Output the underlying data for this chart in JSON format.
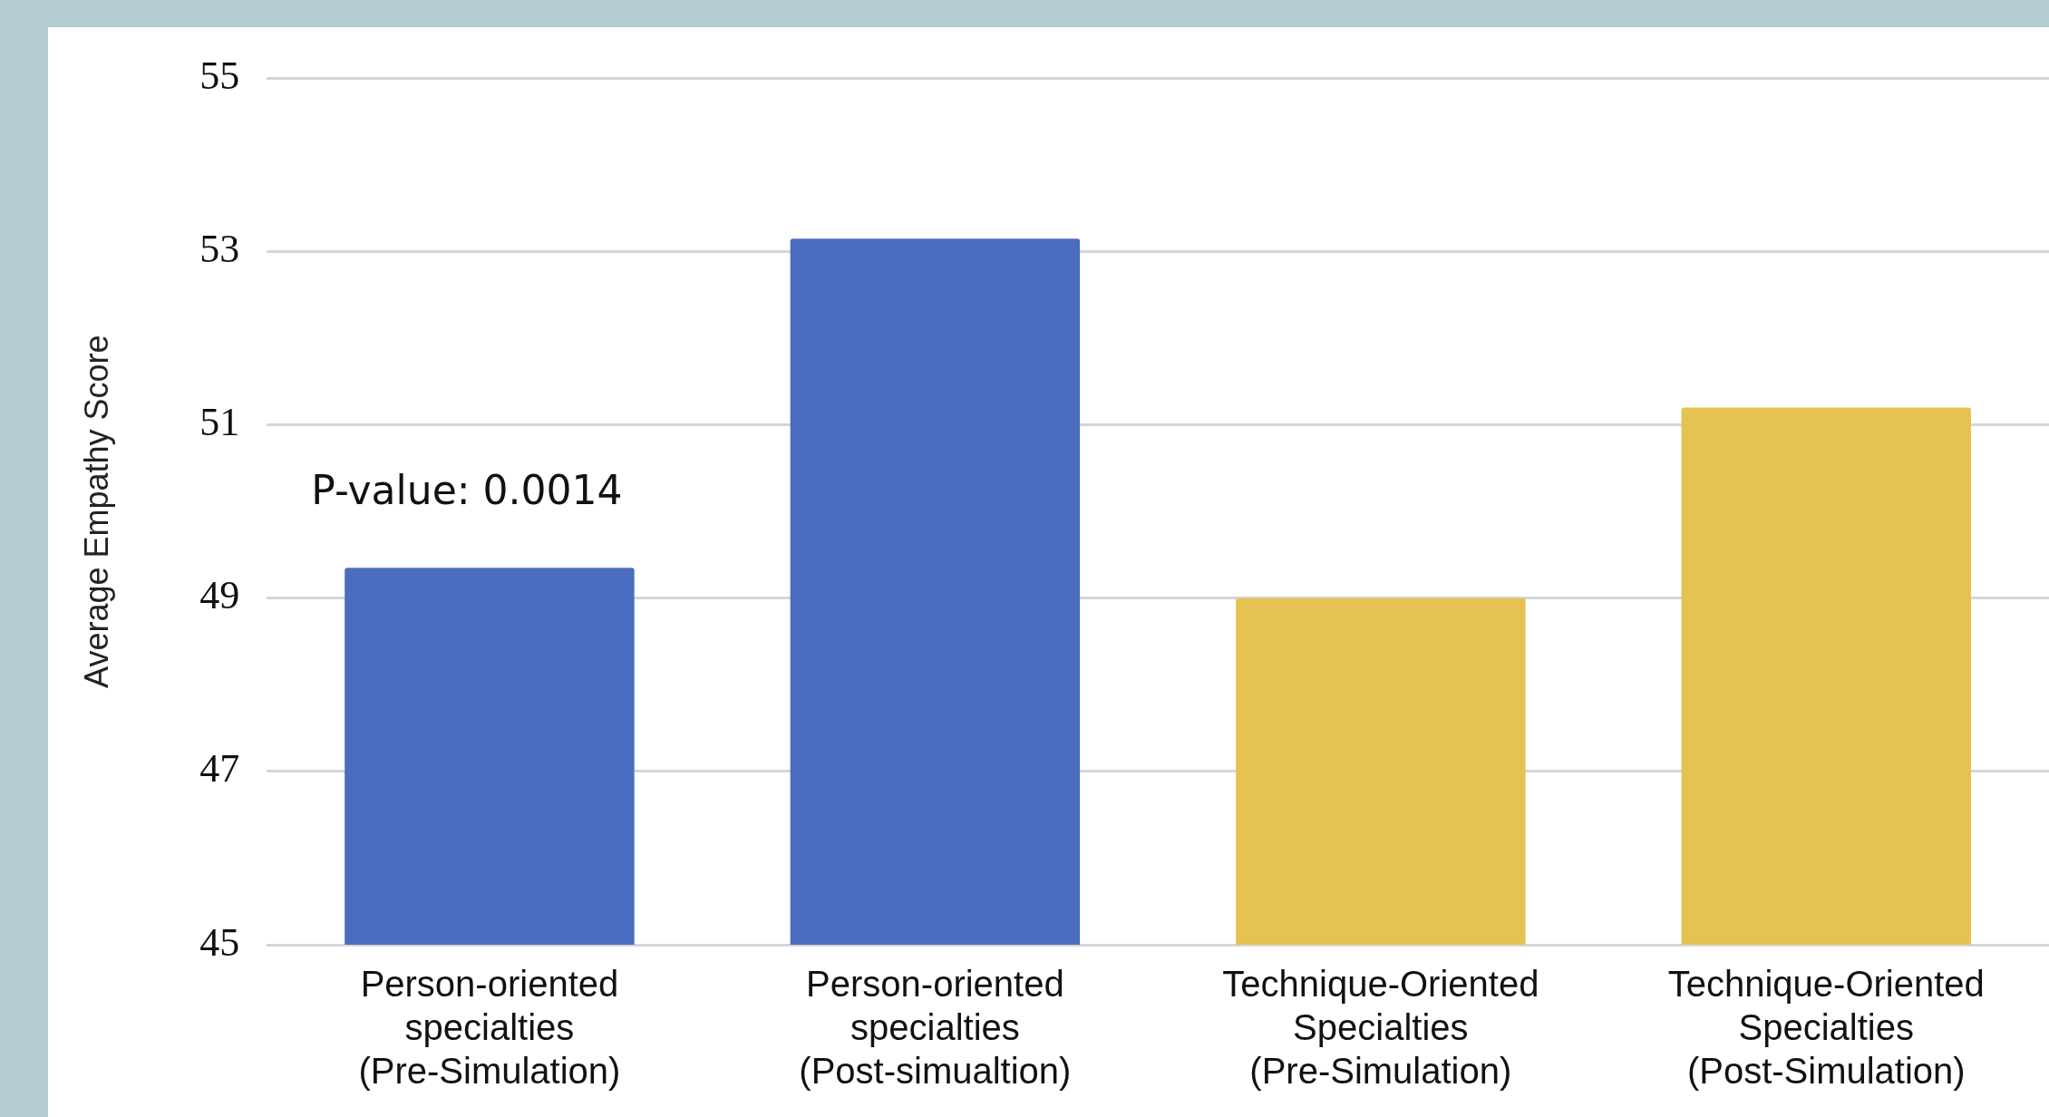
{
  "chart_data": {
    "type": "bar",
    "ylabel": "Average Empathy Score",
    "categories": [
      "Person-oriented\nspecialties\n(Pre-Simulation)",
      "Person-oriented\nspecialties\n(Post-simualtion)",
      "Technique-Oriented\nSpecialties\n(Pre-Simulation)",
      "Technique-Oriented\nSpecialties\n(Post-Simulation)"
    ],
    "values": [
      49.35,
      53.15,
      49.0,
      51.2
    ],
    "colors": [
      "#4a6dbf",
      "#4a6dbf",
      "#e5c251",
      "#e5c251"
    ],
    "ylim": [
      45,
      55
    ],
    "yticks": [
      45,
      47,
      49,
      51,
      53,
      55
    ],
    "grid": "y",
    "legend": false,
    "annotations": [
      "P-value: 0.0014"
    ]
  }
}
